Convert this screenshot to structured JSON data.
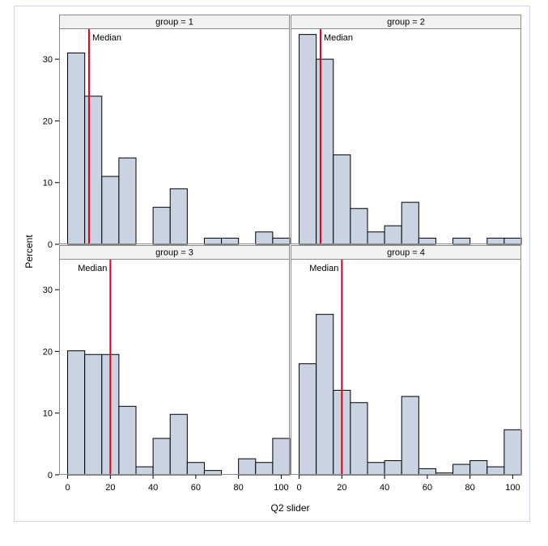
{
  "chart_data": {
    "type": "histogram-panel",
    "xlabel": "Q2 slider",
    "ylabel": "Percent",
    "xlim": [
      -4,
      104
    ],
    "ylim": [
      0,
      35
    ],
    "bin_width": 8,
    "x_ticks": [
      0,
      20,
      40,
      60,
      80,
      100
    ],
    "y_ticks": [
      0,
      10,
      20,
      30
    ],
    "median_label": "Median",
    "colors": {
      "bar_fill": "#c9d3e1",
      "bar_stroke": "#000000",
      "median": "#e0001a",
      "header_bg": "#f2f2f2",
      "border": "#8c8c8c"
    },
    "panels": [
      {
        "title": "group = 1",
        "median": 10,
        "label_side": "right",
        "bins": [
          0,
          8,
          16,
          24,
          32,
          40,
          48,
          56,
          64,
          72,
          80,
          88,
          96
        ],
        "values": [
          31,
          24,
          11,
          14,
          0,
          6,
          9,
          0,
          1,
          1,
          0,
          2,
          1
        ]
      },
      {
        "title": "group = 2",
        "median": 10,
        "label_side": "right",
        "bins": [
          0,
          8,
          16,
          24,
          32,
          40,
          48,
          56,
          64,
          72,
          80,
          88,
          96
        ],
        "values": [
          34,
          30,
          14.5,
          5.8,
          2,
          3,
          6.8,
          1,
          0,
          1,
          0,
          1,
          1
        ]
      },
      {
        "title": "group = 3",
        "median": 20,
        "label_side": "left",
        "bins": [
          0,
          8,
          16,
          24,
          32,
          40,
          48,
          56,
          64,
          72,
          80,
          88,
          96
        ],
        "values": [
          20.1,
          19.5,
          19.5,
          11.1,
          1.3,
          5.9,
          9.8,
          2,
          0.7,
          0,
          2.6,
          2,
          5.9
        ]
      },
      {
        "title": "group = 4",
        "median": 20,
        "label_side": "left",
        "bins": [
          0,
          8,
          16,
          24,
          32,
          40,
          48,
          56,
          64,
          72,
          80,
          88,
          96
        ],
        "values": [
          18,
          26,
          13.7,
          11.7,
          2,
          2.3,
          12.7,
          1,
          0.3,
          1.7,
          2.3,
          1.3,
          7.3
        ]
      }
    ]
  }
}
